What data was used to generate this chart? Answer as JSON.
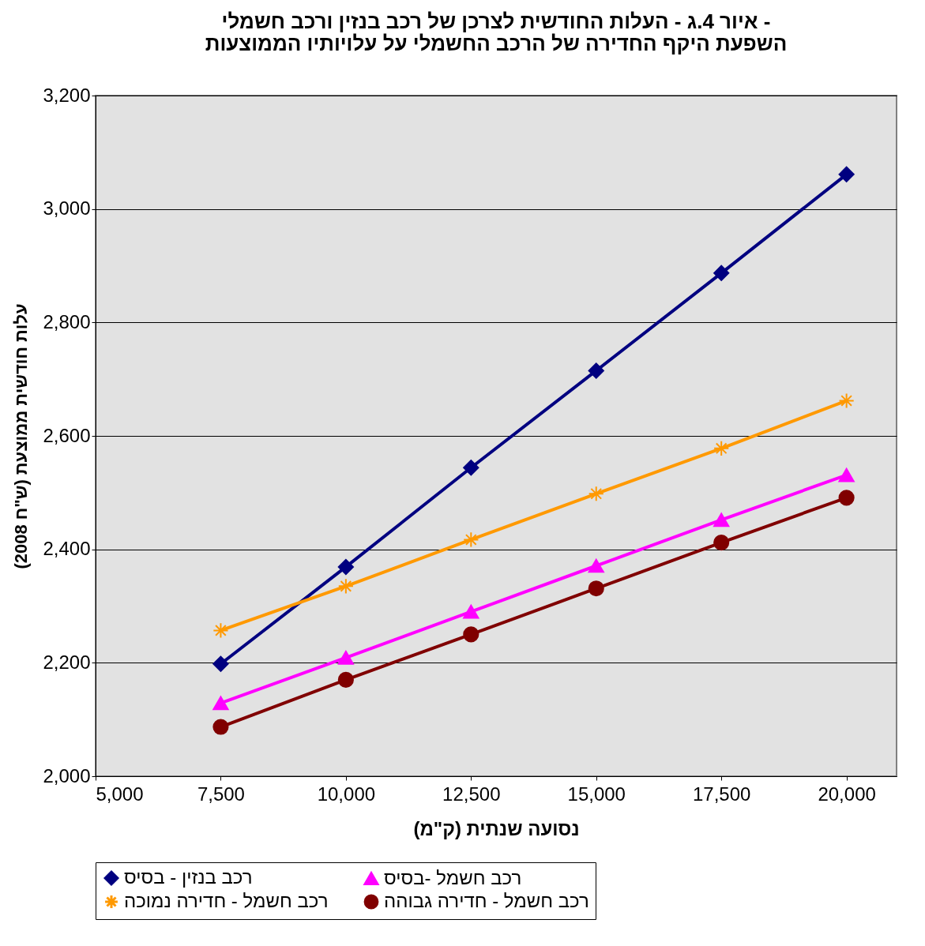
{
  "chart_data": {
    "type": "line",
    "title": [
      "איור 4.ג - העלות החודשית לצרכן של רכב בנזין ורכב חשמלי -",
      "השפעת היקף החדירה של הרכב החשמלי על עלויותיו הממוצעות"
    ],
    "xlabel": "נסועה שנתית (ק\"מ)",
    "ylabel": "עלות חודשית ממוצעת (ש\"ח 2008)",
    "x": [
      7500,
      10000,
      12500,
      15000,
      17500,
      20000
    ],
    "xlim": [
      5000,
      21000
    ],
    "xticks": [
      {
        "value": 5000,
        "label": "5,000"
      },
      {
        "value": 7500,
        "label": "7,500"
      },
      {
        "value": 10000,
        "label": "10,000"
      },
      {
        "value": 12500,
        "label": "12,500"
      },
      {
        "value": 15000,
        "label": "15,000"
      },
      {
        "value": 17500,
        "label": "17,500"
      },
      {
        "value": 20000,
        "label": "20,000"
      }
    ],
    "ylim": [
      2000,
      3200
    ],
    "yticks": [
      {
        "value": 2000,
        "label": "2,000"
      },
      {
        "value": 2200,
        "label": "2,200"
      },
      {
        "value": 2400,
        "label": "2,400"
      },
      {
        "value": 2600,
        "label": "2,600"
      },
      {
        "value": 2800,
        "label": "2,800"
      },
      {
        "value": 3000,
        "label": "3,000"
      },
      {
        "value": 3200,
        "label": "3,200"
      }
    ],
    "grid": "y",
    "legend": "bottom",
    "line_style": "solid",
    "series": [
      {
        "name": "רכב בנזין - בסיס",
        "color": "#000080",
        "marker": "diamond",
        "values": [
          2198,
          2369,
          2544,
          2715,
          2887,
          3061
        ]
      },
      {
        "name": "רכב חשמל -בסיס",
        "color": "#ff00ff",
        "marker": "triangle",
        "values": [
          2129,
          2209,
          2290,
          2371,
          2452,
          2531
        ]
      },
      {
        "name": "רכב חשמל - חדירה נמוכה",
        "color": "#ff9900",
        "marker": "cross",
        "values": [
          2257,
          2335,
          2417,
          2498,
          2578,
          2662
        ]
      },
      {
        "name": "רכב חשמל - חדירה גבוהה",
        "color": "#800000",
        "marker": "circle",
        "values": [
          2087,
          2170,
          2250,
          2331,
          2412,
          2491
        ]
      }
    ]
  }
}
